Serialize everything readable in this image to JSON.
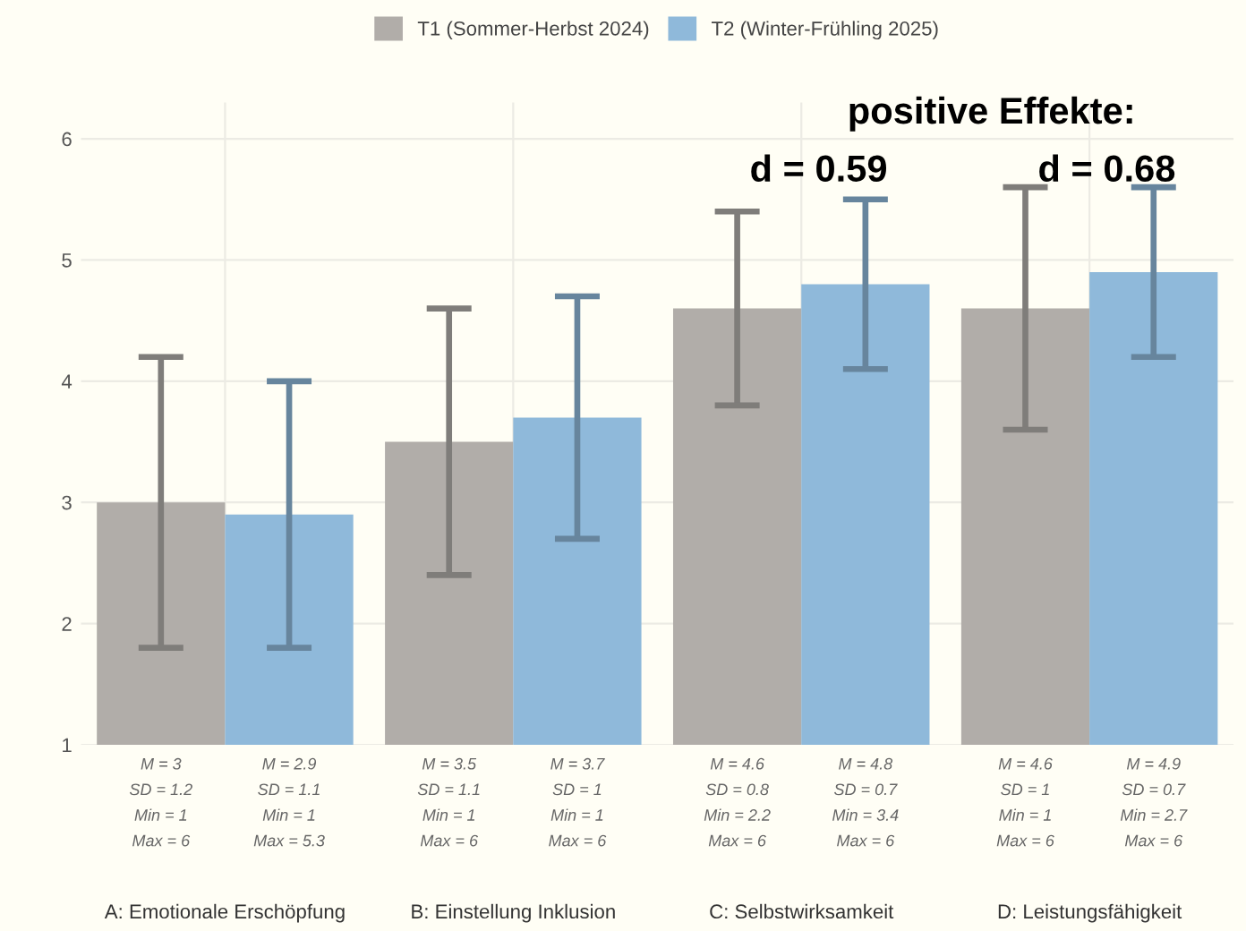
{
  "chart_data": {
    "type": "bar",
    "categories": [
      "A: Emotionale Erschöpfung",
      "B: Einstellung Inklusion",
      "C: Selbstwirksamkeit",
      "D: Leistungsfähigkeit"
    ],
    "series": [
      {
        "name": "T1 (Sommer-Herbst 2024)",
        "color": "#b1ada9",
        "values": [
          3,
          3.5,
          4.6,
          4.6
        ],
        "errors": [
          1.2,
          1.1,
          0.8,
          1
        ],
        "value_labels": [
          "M = 3\nSD = 1.2\nMin = 1\nMax = 6",
          "M = 3.5\nSD = 1.1\nMin = 1\nMax = 6",
          "M = 4.6\nSD = 0.8\nMin = 2.2\nMax = 6",
          "M = 4.6\nSD = 1\nMin = 1\nMax = 6"
        ]
      },
      {
        "name": "T2 (Winter-Frühling 2025)",
        "color": "#8fb9da",
        "values": [
          2.9,
          3.7,
          4.8,
          4.9
        ],
        "errors": [
          1.1,
          1,
          0.7,
          0.7
        ],
        "value_labels": [
          "M = 2.9\nSD = 1.1\nMin = 1\nMax = 5.3",
          "M = 3.7\nSD = 1\nMin = 1\nMax = 6",
          "M = 4.8\nSD = 0.7\nMin = 3.4\nMax = 6",
          "M = 4.9\nSD = 0.7\nMin = 2.7\nMax = 6"
        ]
      }
    ],
    "ylim": [
      1,
      6.3
    ],
    "yticks": [
      1,
      2,
      3,
      4,
      5,
      6
    ],
    "grid": true,
    "legend": "top",
    "annotations": [
      "positive Effekte:",
      "d = 0.59",
      "d = 0.68"
    ]
  }
}
